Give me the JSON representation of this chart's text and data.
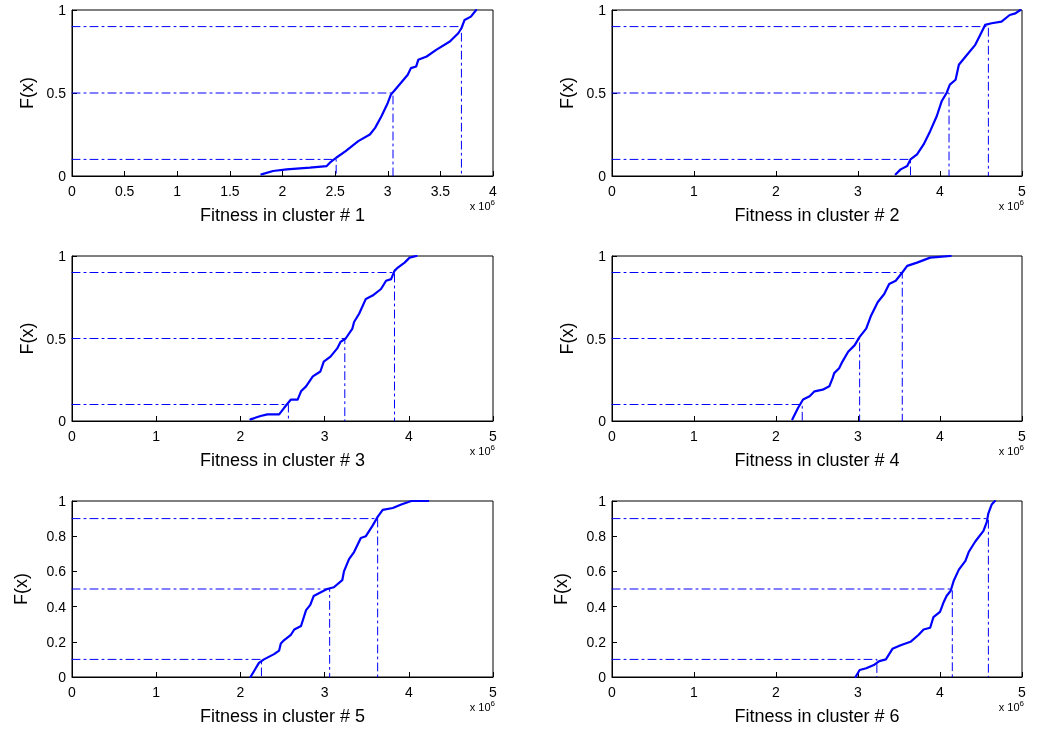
{
  "chart_data": [
    {
      "type": "line",
      "xlabel": "Fitness in cluster # 1",
      "ylabel": "F(x)",
      "xlim": [
        0,
        4
      ],
      "xticks": [
        0,
        0.5,
        1,
        1.5,
        2,
        2.5,
        3,
        3.5,
        4
      ],
      "ylim": [
        0,
        1
      ],
      "yticks": [
        0,
        0.5,
        1
      ],
      "grid": false,
      "marker": "none",
      "annotations": [
        "x 10$^{6}$"
      ],
      "series": [
        {
          "type": "line",
          "color": "#0000ff",
          "line_style": "solid",
          "x": [
            1.8,
            1.91,
            2.04,
            2.26,
            2.42,
            2.45,
            2.51,
            2.6,
            2.72,
            2.83,
            2.88,
            2.94,
            3.0,
            3.03,
            3.07,
            3.11,
            3.19,
            3.22,
            3.27,
            3.29,
            3.37,
            3.46,
            3.59,
            3.67,
            3.7,
            3.73,
            3.79,
            3.84
          ],
          "values": [
            0.01,
            0.03,
            0.04,
            0.05,
            0.06,
            0.08,
            0.11,
            0.15,
            0.21,
            0.25,
            0.29,
            0.36,
            0.44,
            0.49,
            0.52,
            0.55,
            0.61,
            0.65,
            0.66,
            0.7,
            0.72,
            0.76,
            0.81,
            0.86,
            0.89,
            0.94,
            0.96,
            1.0
          ]
        },
        {
          "type": "line",
          "color": "#0000ff",
          "line_style": "dashed",
          "x": [
            0,
            2.51,
            2.51
          ],
          "values": [
            0.1,
            0.1,
            0
          ]
        },
        {
          "type": "line",
          "color": "#0000ff",
          "line_style": "dashed",
          "x": [
            0,
            3.05,
            3.05
          ],
          "values": [
            0.5,
            0.5,
            0
          ]
        },
        {
          "type": "line",
          "color": "#0000ff",
          "line_style": "dashed",
          "x": [
            0,
            3.7,
            3.7
          ],
          "values": [
            0.9,
            0.9,
            0
          ]
        }
      ]
    },
    {
      "type": "line",
      "xlabel": "Fitness in cluster # 2",
      "ylabel": "F(x)",
      "xlim": [
        0,
        5
      ],
      "xticks": [
        0,
        1,
        2,
        3,
        4,
        5
      ],
      "ylim": [
        0,
        1
      ],
      "yticks": [
        0,
        0.5,
        1
      ],
      "grid": false,
      "marker": "none",
      "annotations": [
        "x 10$^{6}$"
      ],
      "series": [
        {
          "type": "line",
          "color": "#0000ff",
          "line_style": "solid",
          "x": [
            3.46,
            3.52,
            3.6,
            3.64,
            3.72,
            3.8,
            3.88,
            3.96,
            4.02,
            4.08,
            4.12,
            4.19,
            4.23,
            4.33,
            4.43,
            4.49,
            4.55,
            4.63,
            4.75,
            4.85,
            4.92,
            4.98
          ],
          "values": [
            0.01,
            0.04,
            0.06,
            0.1,
            0.13,
            0.19,
            0.27,
            0.36,
            0.45,
            0.5,
            0.55,
            0.58,
            0.67,
            0.73,
            0.79,
            0.85,
            0.91,
            0.92,
            0.93,
            0.97,
            0.98,
            1.0
          ]
        },
        {
          "type": "line",
          "color": "#0000ff",
          "line_style": "dashed",
          "x": [
            0,
            3.64,
            3.64
          ],
          "values": [
            0.1,
            0.1,
            0
          ]
        },
        {
          "type": "line",
          "color": "#0000ff",
          "line_style": "dashed",
          "x": [
            0,
            4.11,
            4.11
          ],
          "values": [
            0.5,
            0.5,
            0
          ]
        },
        {
          "type": "line",
          "color": "#0000ff",
          "line_style": "dashed",
          "x": [
            0,
            4.59,
            4.59
          ],
          "values": [
            0.9,
            0.9,
            0
          ]
        }
      ]
    },
    {
      "type": "line",
      "xlabel": "Fitness in cluster # 3",
      "ylabel": "F(x)",
      "xlim": [
        0,
        5
      ],
      "xticks": [
        0,
        1,
        2,
        3,
        4,
        5
      ],
      "ylim": [
        0,
        1
      ],
      "yticks": [
        0,
        0.5,
        1
      ],
      "grid": false,
      "marker": "none",
      "annotations": [
        "x 10$^{6}$"
      ],
      "series": [
        {
          "type": "line",
          "color": "#0000ff",
          "line_style": "solid",
          "x": [
            2.12,
            2.24,
            2.32,
            2.46,
            2.52,
            2.6,
            2.68,
            2.72,
            2.78,
            2.86,
            2.95,
            2.99,
            3.07,
            3.15,
            3.19,
            3.25,
            3.33,
            3.35,
            3.41,
            3.49,
            3.57,
            3.67,
            3.73,
            3.79,
            3.83,
            3.87,
            3.95,
            4.01,
            4.09
          ],
          "values": [
            0.01,
            0.03,
            0.04,
            0.04,
            0.08,
            0.13,
            0.13,
            0.18,
            0.21,
            0.27,
            0.3,
            0.36,
            0.39,
            0.44,
            0.48,
            0.5,
            0.56,
            0.6,
            0.65,
            0.74,
            0.76,
            0.8,
            0.85,
            0.86,
            0.91,
            0.93,
            0.96,
            0.99,
            1.0
          ]
        },
        {
          "type": "line",
          "color": "#0000ff",
          "line_style": "dashed",
          "x": [
            0,
            2.57,
            2.57
          ],
          "values": [
            0.1,
            0.1,
            0
          ]
        },
        {
          "type": "line",
          "color": "#0000ff",
          "line_style": "dashed",
          "x": [
            0,
            3.24,
            3.24
          ],
          "values": [
            0.5,
            0.5,
            0
          ]
        },
        {
          "type": "line",
          "color": "#0000ff",
          "line_style": "dashed",
          "x": [
            0,
            3.83,
            3.83
          ],
          "values": [
            0.9,
            0.9,
            0
          ]
        }
      ]
    },
    {
      "type": "line",
      "xlabel": "Fitness in cluster # 4",
      "ylabel": "F(x)",
      "xlim": [
        0,
        5
      ],
      "xticks": [
        0,
        1,
        2,
        3,
        4,
        5
      ],
      "ylim": [
        0,
        1
      ],
      "yticks": [
        0,
        0.5,
        1
      ],
      "grid": false,
      "marker": "none",
      "annotations": [
        "x 10$^{6}$"
      ],
      "series": [
        {
          "type": "line",
          "color": "#0000ff",
          "line_style": "solid",
          "x": [
            2.2,
            2.27,
            2.33,
            2.41,
            2.47,
            2.57,
            2.65,
            2.69,
            2.71,
            2.77,
            2.81,
            2.88,
            2.96,
            3.02,
            3.1,
            3.16,
            3.24,
            3.32,
            3.38,
            3.46,
            3.54,
            3.6,
            3.72,
            3.88,
            4.13
          ],
          "values": [
            0.01,
            0.08,
            0.13,
            0.15,
            0.18,
            0.19,
            0.21,
            0.26,
            0.29,
            0.32,
            0.36,
            0.42,
            0.46,
            0.51,
            0.56,
            0.64,
            0.72,
            0.77,
            0.83,
            0.85,
            0.9,
            0.94,
            0.96,
            0.99,
            1.0
          ]
        },
        {
          "type": "line",
          "color": "#0000ff",
          "line_style": "dashed",
          "x": [
            0,
            2.32,
            2.32
          ],
          "values": [
            0.1,
            0.1,
            0
          ]
        },
        {
          "type": "line",
          "color": "#0000ff",
          "line_style": "dashed",
          "x": [
            0,
            3.02,
            3.02
          ],
          "values": [
            0.5,
            0.5,
            0
          ]
        },
        {
          "type": "line",
          "color": "#0000ff",
          "line_style": "dashed",
          "x": [
            0,
            3.54,
            3.54
          ],
          "values": [
            0.9,
            0.9,
            0
          ]
        }
      ]
    },
    {
      "type": "line",
      "xlabel": "Fitness in cluster # 5",
      "ylabel": "F(x)",
      "xlim": [
        0,
        5
      ],
      "xticks": [
        0,
        1,
        2,
        3,
        4,
        5
      ],
      "ylim": [
        0,
        1
      ],
      "yticks": [
        0,
        0.2,
        0.4,
        0.6,
        0.8,
        1
      ],
      "grid": false,
      "marker": "none",
      "annotations": [
        "x 10$^{6}$"
      ],
      "series": [
        {
          "type": "line",
          "color": "#0000ff",
          "line_style": "solid",
          "x": [
            2.12,
            2.22,
            2.28,
            2.4,
            2.46,
            2.48,
            2.52,
            2.6,
            2.64,
            2.72,
            2.78,
            2.83,
            2.87,
            2.95,
            3.03,
            3.11,
            3.21,
            3.23,
            3.29,
            3.35,
            3.43,
            3.49,
            3.57,
            3.63,
            3.69,
            3.81,
            3.91,
            4.03,
            4.23
          ],
          "values": [
            0.0,
            0.08,
            0.1,
            0.13,
            0.15,
            0.19,
            0.21,
            0.24,
            0.27,
            0.29,
            0.38,
            0.41,
            0.46,
            0.48,
            0.5,
            0.51,
            0.55,
            0.6,
            0.67,
            0.71,
            0.79,
            0.8,
            0.86,
            0.91,
            0.95,
            0.96,
            0.98,
            1.0,
            1.0
          ]
        },
        {
          "type": "line",
          "color": "#0000ff",
          "line_style": "dashed",
          "x": [
            0,
            2.25,
            2.25
          ],
          "values": [
            0.1,
            0.1,
            0
          ]
        },
        {
          "type": "line",
          "color": "#0000ff",
          "line_style": "dashed",
          "x": [
            0,
            3.06,
            3.06
          ],
          "values": [
            0.5,
            0.5,
            0
          ]
        },
        {
          "type": "line",
          "color": "#0000ff",
          "line_style": "dashed",
          "x": [
            0,
            3.63,
            3.63
          ],
          "values": [
            0.9,
            0.9,
            0
          ]
        }
      ]
    },
    {
      "type": "line",
      "xlabel": "Fitness in cluster # 6",
      "ylabel": "F(x)",
      "xlim": [
        0,
        5
      ],
      "xticks": [
        0,
        1,
        2,
        3,
        4,
        5
      ],
      "ylim": [
        0,
        1
      ],
      "yticks": [
        0,
        0.2,
        0.4,
        0.6,
        0.8,
        1
      ],
      "grid": false,
      "marker": "none",
      "annotations": [
        "x 10$^{6}$"
      ],
      "series": [
        {
          "type": "line",
          "color": "#0000ff",
          "line_style": "solid",
          "x": [
            2.97,
            3.02,
            3.1,
            3.2,
            3.26,
            3.34,
            3.42,
            3.52,
            3.64,
            3.74,
            3.8,
            3.88,
            3.92,
            4.0,
            4.04,
            4.08,
            4.13,
            4.17,
            4.23,
            4.31,
            4.35,
            4.43,
            4.53,
            4.57,
            4.59,
            4.63,
            4.67
          ],
          "values": [
            0.0,
            0.04,
            0.05,
            0.07,
            0.09,
            0.1,
            0.16,
            0.18,
            0.2,
            0.24,
            0.27,
            0.28,
            0.34,
            0.37,
            0.42,
            0.46,
            0.49,
            0.55,
            0.61,
            0.66,
            0.71,
            0.77,
            0.83,
            0.88,
            0.93,
            0.98,
            1.0
          ]
        },
        {
          "type": "line",
          "color": "#0000ff",
          "line_style": "dashed",
          "x": [
            0,
            3.23,
            3.23
          ],
          "values": [
            0.1,
            0.1,
            0
          ]
        },
        {
          "type": "line",
          "color": "#0000ff",
          "line_style": "dashed",
          "x": [
            0,
            4.15,
            4.15
          ],
          "values": [
            0.5,
            0.5,
            0
          ]
        },
        {
          "type": "line",
          "color": "#0000ff",
          "line_style": "dashed",
          "x": [
            0,
            4.59,
            4.59
          ],
          "values": [
            0.9,
            0.9,
            0
          ]
        }
      ]
    }
  ]
}
